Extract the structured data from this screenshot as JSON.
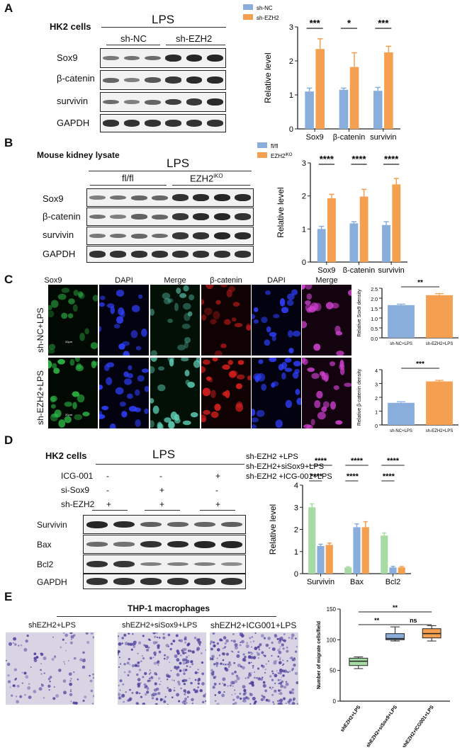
{
  "panel_labels": [
    "A",
    "B",
    "C",
    "D",
    "E"
  ],
  "panelA": {
    "cell_label": "HK2 cells",
    "treatment": "LPS",
    "groups": [
      "sh-NC",
      "sh-EZH2"
    ],
    "blot_rows": [
      "Sox9",
      "β-catenin",
      "survivin",
      "GAPDH"
    ],
    "chart": {
      "type": "bar",
      "categories": [
        "Sox9",
        "β-catenin",
        "survivin"
      ],
      "series": [
        {
          "name": "sh-NC",
          "color": "#8aaedc",
          "values": [
            1.1,
            1.15,
            1.12
          ],
          "errors": [
            0.1,
            0.05,
            0.1
          ]
        },
        {
          "name": "sh-EZH2",
          "color": "#f5a050",
          "values": [
            2.35,
            1.82,
            2.25
          ],
          "errors": [
            0.3,
            0.42,
            0.18
          ]
        }
      ],
      "ylabel": "Relative level",
      "ylim": [
        0,
        3
      ],
      "yticks": [
        "0",
        "1",
        "2",
        "3"
      ],
      "sig": [
        "***",
        "*",
        "***"
      ]
    }
  },
  "panelB": {
    "title": "Mouse kidney lysate",
    "treatment": "LPS",
    "groups": [
      "fl/fl",
      "EZH2"
    ],
    "group_sup": "iKO",
    "blot_rows": [
      "Sox9",
      "β-catenin",
      "survivin",
      "GAPDH"
    ],
    "chart": {
      "type": "bar",
      "categories": [
        "Sox9",
        "β-catenin",
        "survivin"
      ],
      "series": [
        {
          "name": "fl/fl",
          "color": "#8aaedc",
          "values": [
            1.0,
            1.17,
            1.12
          ],
          "errors": [
            0.08,
            0.05,
            0.1
          ]
        },
        {
          "name": "EZH2",
          "name_sup": "iKO",
          "color": "#f5a050",
          "values": [
            1.93,
            1.98,
            2.35
          ],
          "errors": [
            0.12,
            0.22,
            0.18
          ]
        }
      ],
      "ylabel": "Relative level",
      "ylim": [
        0,
        3
      ],
      "yticks": [
        "0",
        "1",
        "2",
        "3"
      ],
      "sig": [
        "****",
        "****",
        "****"
      ]
    }
  },
  "panelC": {
    "columns": [
      "Sox9",
      "DAPI",
      "Merge",
      "β-catenin",
      "DAPI",
      "Merge"
    ],
    "rows": [
      "sh-NC+LPS",
      "sh-EZH2+LPS"
    ],
    "scalebar": "20μm",
    "chart1": {
      "type": "bar",
      "categories": [
        "sh-NC+LPS",
        "sh-EZH2+LPS"
      ],
      "values": [
        1.65,
        2.15
      ],
      "errors": [
        0.05,
        0.08
      ],
      "ylabel": "Relative Sox9 density",
      "ylim": [
        0,
        2.5
      ],
      "yticks": [
        "0.0",
        "0.5",
        "1.0",
        "1.5",
        "2.0",
        "2.5"
      ],
      "sig": "**"
    },
    "chart2": {
      "type": "bar",
      "categories": [
        "sh-NC+LPS",
        "sh-EZH2+LPS"
      ],
      "values": [
        1.6,
        3.15
      ],
      "errors": [
        0.08,
        0.08
      ],
      "ylabel": "Relative β-catenin density",
      "ylim": [
        0,
        4
      ],
      "yticks": [
        "0",
        "1",
        "2",
        "3",
        "4"
      ],
      "sig": "***"
    }
  },
  "panelD": {
    "cell_label": "HK2 cells",
    "treatment": "LPS",
    "conditions": [
      {
        "label": "ICG-001",
        "marks": [
          "-",
          "-",
          "+"
        ]
      },
      {
        "label": "si-Sox9",
        "marks": [
          "-",
          "+",
          "-"
        ]
      },
      {
        "label": "sh-EZH2",
        "marks": [
          "+",
          "+",
          "+"
        ]
      }
    ],
    "blot_rows": [
      "Survivin",
      "Bax",
      "Bcl2",
      "GAPDH"
    ],
    "chart": {
      "type": "bar",
      "categories": [
        "Survivin",
        "Bax",
        "Bcl2"
      ],
      "series": [
        {
          "name": "sh-EZH2 +LPS",
          "color": "#a6dca4",
          "values": [
            3.0,
            0.28,
            1.72
          ],
          "errors": [
            0.15,
            0.03,
            0.12
          ]
        },
        {
          "name": "sh-EZH2+siSox9+LPS",
          "color": "#8aaedc",
          "values": [
            1.25,
            2.1,
            0.28
          ],
          "errors": [
            0.08,
            0.15,
            0.05
          ]
        },
        {
          "name": "sh-EZH2 +ICG-001+LPS",
          "color": "#f5a050",
          "values": [
            1.3,
            2.1,
            0.28
          ],
          "errors": [
            0.08,
            0.25,
            0.04
          ]
        }
      ],
      "ylabel": "Relative level",
      "ylim": [
        0,
        4
      ],
      "yticks": [
        "0",
        "1",
        "2",
        "3",
        "4"
      ],
      "sig": [
        "****",
        "****",
        "****"
      ]
    }
  },
  "panelE": {
    "title": "THP-1 macrophages",
    "images": [
      "shEZH2+LPS",
      "shEZH2+siSox9+LPS",
      "shEZH2+ICG001+LPS"
    ],
    "chart": {
      "type": "box",
      "categories": [
        "shEZH2+LPS",
        "shEZH2+siSox9+LPS",
        "shEZH2+ICG001+LPS"
      ],
      "colors": [
        "#a6dca4",
        "#8aaedc",
        "#f5a050"
      ],
      "boxes": [
        {
          "min": 53,
          "q1": 58,
          "median": 65,
          "q3": 70,
          "max": 72
        },
        {
          "min": 98,
          "q1": 100,
          "median": 102,
          "q3": 110,
          "max": 121
        },
        {
          "min": 98,
          "q1": 103,
          "median": 110,
          "q3": 118,
          "max": 123
        }
      ],
      "ylabel": "Number of migrate cells/field",
      "ylim": [
        0,
        150
      ],
      "yticks": [
        "0",
        "50",
        "100",
        "150"
      ],
      "sig": [
        "**",
        "**",
        "ns"
      ]
    }
  }
}
